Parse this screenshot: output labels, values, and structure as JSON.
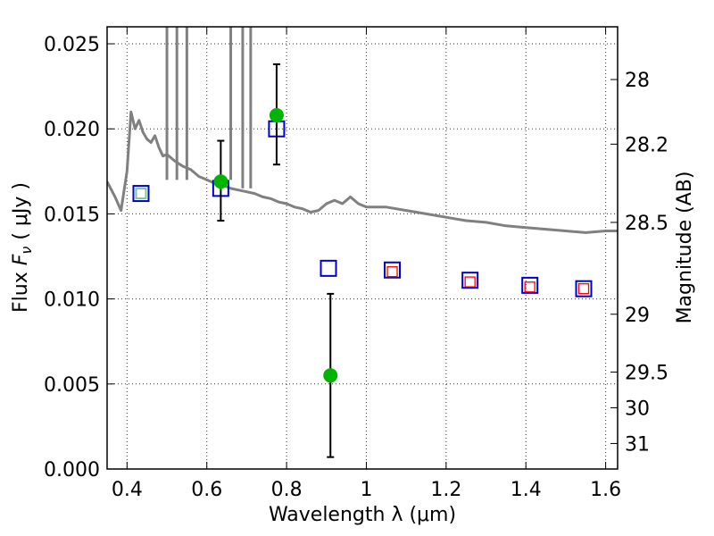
{
  "chart_data": {
    "type": "scatter",
    "title": "",
    "xlabel": "Wavelength  λ (μm)",
    "ylabel_prefix": "Flux ",
    "ylabel_var": "F",
    "ylabel_sub": "ν",
    "ylabel_unit": " ( μJy )",
    "y2label": "Magnitude (AB)",
    "xlim": [
      0.35,
      1.63
    ],
    "ylim": [
      0.0,
      0.026
    ],
    "grid": true,
    "x_ticks": [
      0.4,
      0.6,
      0.8,
      1.0,
      1.2,
      1.4,
      1.6
    ],
    "x_tick_labels": [
      "0.4",
      "0.6",
      "0.8",
      "1",
      "1.2",
      "1.4",
      "1.6"
    ],
    "y_ticks": [
      0.0,
      0.005,
      0.01,
      0.015,
      0.02,
      0.025
    ],
    "y_tick_labels": [
      "0.000",
      "0.005",
      "0.010",
      "0.015",
      "0.020",
      "0.025"
    ],
    "y2_ticks": [
      {
        "label": "28",
        "flux": 0.0229
      },
      {
        "label": "28.2",
        "flux": 0.0191
      },
      {
        "label": "28.5",
        "flux": 0.0145
      },
      {
        "label": "29",
        "flux": 0.0091
      },
      {
        "label": "29.5",
        "flux": 0.0057
      },
      {
        "label": "30",
        "flux": 0.0036
      },
      {
        "label": "31",
        "flux": 0.0015
      }
    ],
    "series": [
      {
        "kind": "spectrum",
        "color": "#808080",
        "x": [
          0.35,
          0.37,
          0.385,
          0.4,
          0.41,
          0.42,
          0.43,
          0.44,
          0.45,
          0.46,
          0.47,
          0.48,
          0.49,
          0.5,
          0.52,
          0.54,
          0.56,
          0.58,
          0.6,
          0.62,
          0.64,
          0.66,
          0.68,
          0.7,
          0.72,
          0.74,
          0.76,
          0.78,
          0.8,
          0.82,
          0.84,
          0.86,
          0.88,
          0.9,
          0.92,
          0.94,
          0.96,
          0.98,
          1.0,
          1.05,
          1.1,
          1.15,
          1.2,
          1.25,
          1.3,
          1.35,
          1.4,
          1.45,
          1.5,
          1.55,
          1.6,
          1.63
        ],
        "y": [
          0.0169,
          0.016,
          0.0152,
          0.0175,
          0.021,
          0.02,
          0.0205,
          0.0198,
          0.0194,
          0.0192,
          0.0196,
          0.0189,
          0.0184,
          0.0185,
          0.0181,
          0.0178,
          0.0176,
          0.0172,
          0.017,
          0.0168,
          0.0167,
          0.0165,
          0.0164,
          0.0163,
          0.0162,
          0.016,
          0.0159,
          0.0157,
          0.0156,
          0.0154,
          0.0153,
          0.0151,
          0.0152,
          0.0156,
          0.0158,
          0.0156,
          0.016,
          0.0156,
          0.0154,
          0.0154,
          0.0152,
          0.015,
          0.0148,
          0.0146,
          0.0145,
          0.0143,
          0.0142,
          0.0141,
          0.014,
          0.0139,
          0.014,
          0.014
        ]
      },
      {
        "kind": "spectral_lines",
        "color": "#808080",
        "x": [
          0.395,
          0.42,
          0.46,
          0.5,
          0.515,
          0.52,
          0.525,
          0.53,
          0.535,
          0.54,
          0.55,
          0.66,
          0.665,
          0.69,
          0.7,
          0.71,
          0.715,
          0.72
        ],
        "y": [
          0.026,
          0.026,
          0.026,
          0.017,
          0.026,
          0.026,
          0.017,
          0.026,
          0.026,
          0.026,
          0.017,
          0.017,
          0.026,
          0.0165,
          0.026,
          0.0165,
          0.026,
          0.026
        ]
      },
      {
        "kind": "photometry_observed",
        "color": "#00b400",
        "x": [
          0.635,
          0.775,
          0.91
        ],
        "y": [
          0.0169,
          0.0208,
          0.0055
        ],
        "yerr_low": [
          0.0146,
          0.0179,
          0.0007
        ],
        "yerr_high": [
          0.0193,
          0.0238,
          0.0103
        ]
      },
      {
        "kind": "model_photometry_blue",
        "color": "#0000cc",
        "x": [
          0.435,
          0.635,
          0.775,
          0.905,
          1.065,
          1.26,
          1.41,
          1.545
        ],
        "y": [
          0.0162,
          0.0165,
          0.02,
          0.0118,
          0.0117,
          0.0111,
          0.0108,
          0.0106
        ]
      },
      {
        "kind": "model_photometry_green",
        "color": "#7ec88a",
        "x": [
          0.435
        ],
        "y": [
          0.0162
        ]
      },
      {
        "kind": "model_photometry_red",
        "color": "#ff0000",
        "x": [
          1.065,
          1.26,
          1.41,
          1.545
        ],
        "y": [
          0.0116,
          0.011,
          0.0107,
          0.0106
        ]
      }
    ]
  }
}
